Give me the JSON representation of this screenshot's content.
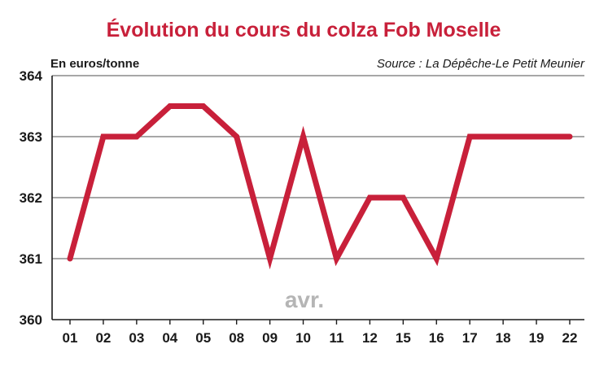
{
  "chart_data": {
    "type": "line",
    "title": "Évolution du cours du colza Fob Moselle",
    "ylabel": "En euros/tonne",
    "source": "Source : La Dépêche-Le Petit Meunier",
    "annotation": "avr.",
    "categories": [
      "01",
      "02",
      "03",
      "04",
      "05",
      "08",
      "09",
      "10",
      "11",
      "12",
      "15",
      "16",
      "17",
      "18",
      "19",
      "22"
    ],
    "series": [
      {
        "values": [
          361,
          363,
          363,
          363.5,
          363.5,
          363,
          361,
          363,
          361,
          362,
          362,
          361,
          363,
          363,
          363,
          363
        ]
      }
    ],
    "ylim": [
      360,
      364
    ],
    "yticks": [
      360,
      361,
      362,
      363,
      364
    ],
    "grid": true,
    "line_color": "#c8203a"
  }
}
